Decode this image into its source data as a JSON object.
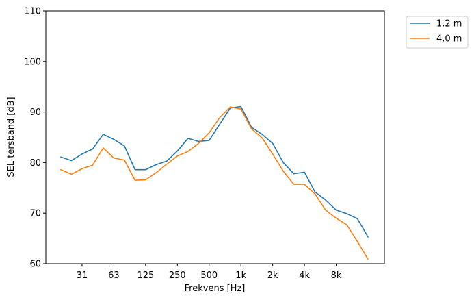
{
  "chart_data": {
    "type": "line",
    "xlabel": "Frekvens [Hz]",
    "ylabel": "SEL tersband [dB]",
    "ylim": [
      60,
      110
    ],
    "yticks": [
      60,
      70,
      80,
      90,
      100,
      110
    ],
    "xtick_labels": [
      "31",
      "63",
      "125",
      "250",
      "500",
      "1k",
      "2k",
      "4k",
      "8k"
    ],
    "x": [
      20,
      25,
      31.5,
      40,
      50,
      63,
      80,
      100,
      125,
      160,
      200,
      250,
      315,
      400,
      500,
      630,
      800,
      1000,
      1250,
      1600,
      2000,
      2500,
      3150,
      4000,
      5000,
      6300,
      8000,
      10000,
      12500,
      16000
    ],
    "legend_position": "outside upper right",
    "grid": false,
    "series": [
      {
        "name": "1.2 m",
        "color": "#1f77b4",
        "values": [
          81.1,
          80.4,
          81.7,
          82.7,
          85.6,
          84.6,
          83.3,
          78.6,
          78.6,
          79.6,
          80.3,
          82.3,
          84.8,
          84.2,
          84.4,
          87.6,
          90.8,
          91.1,
          87.0,
          85.6,
          83.8,
          80.0,
          77.8,
          78.1,
          74.2,
          72.6,
          70.6,
          69.9,
          68.9,
          65.3
        ]
      },
      {
        "name": "4.0 m",
        "color": "#ff7f0e",
        "values": [
          78.6,
          77.7,
          78.8,
          79.5,
          82.9,
          80.9,
          80.5,
          76.5,
          76.6,
          78.0,
          79.7,
          81.3,
          82.2,
          83.8,
          85.9,
          88.9,
          91.0,
          90.6,
          86.7,
          84.9,
          81.7,
          78.3,
          75.7,
          75.7,
          73.8,
          70.6,
          69.0,
          67.7,
          64.4,
          60.9
        ]
      }
    ]
  }
}
